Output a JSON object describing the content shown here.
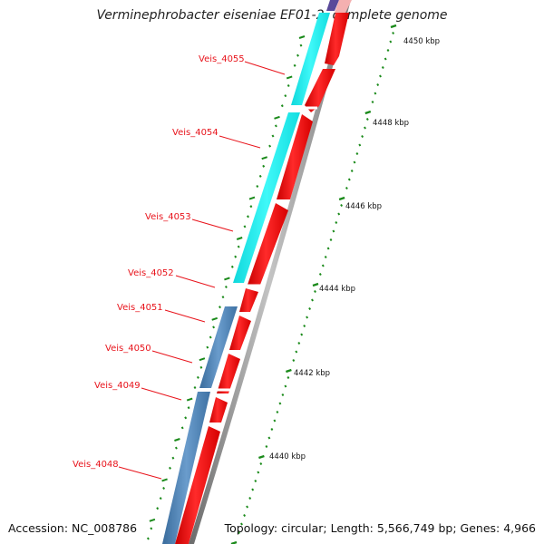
{
  "title": "Verminephrobacter eiseniae EF01-2, complete genome",
  "accession": "Accession: NC_008786",
  "summary": "Topology: circular; Length: 5,566,749 bp; Genes: 4,966",
  "colors": {
    "cds_red": "#ff0000",
    "cyan_feature": "#18f0f0",
    "steelblue_feature": "#4a7fb0",
    "label_red": "#e8141c",
    "gc_green": "#1a8a1a",
    "backbone_gray": "#888888"
  },
  "gene_labels": [
    {
      "name": "Veis_4055",
      "label": "Veis_4055"
    },
    {
      "name": "Veis_4054",
      "label": "Veis_4054"
    },
    {
      "name": "Veis_4053",
      "label": "Veis_4053"
    },
    {
      "name": "Veis_4052",
      "label": "Veis_4052"
    },
    {
      "name": "Veis_4051",
      "label": "Veis_4051"
    },
    {
      "name": "Veis_4050",
      "label": "Veis_4050"
    },
    {
      "name": "Veis_4049",
      "label": "Veis_4049"
    },
    {
      "name": "Veis_4048",
      "label": "Veis_4048"
    }
  ],
  "scale_labels": [
    "4450 kbp",
    "4448 kbp",
    "4446 kbp",
    "4444 kbp",
    "4442 kbp",
    "4440 kbp"
  ]
}
